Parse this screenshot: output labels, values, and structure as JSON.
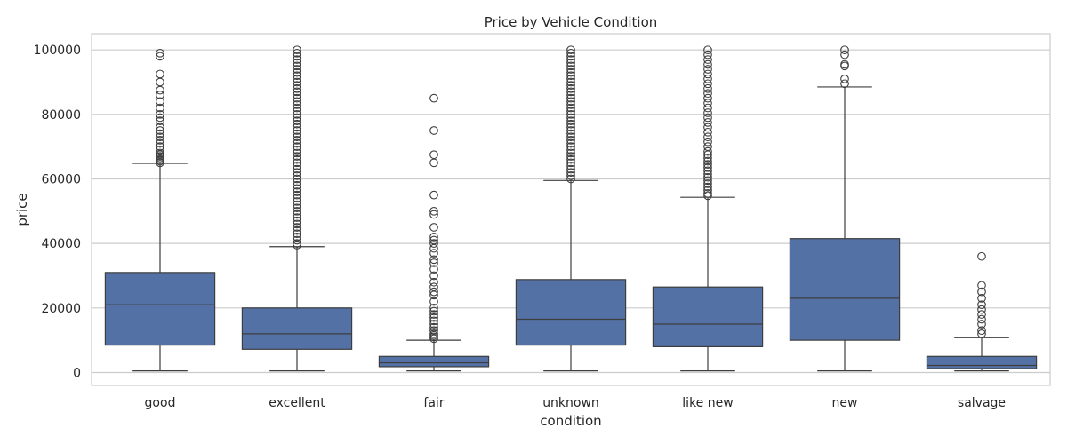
{
  "chart_data": {
    "type": "box",
    "title": "Price by Vehicle Condition",
    "xlabel": "condition",
    "ylabel": "price",
    "ylim": [
      -4000,
      105000
    ],
    "yticks": [
      0,
      20000,
      40000,
      60000,
      80000,
      100000
    ],
    "ytick_labels": [
      "0",
      "20000",
      "40000",
      "60000",
      "80000",
      "100000"
    ],
    "grid": true,
    "categories": [
      "good",
      "excellent",
      "fair",
      "unknown",
      "like new",
      "new",
      "salvage"
    ],
    "box_color": "#5471a6",
    "line_color": "#3d3d3d",
    "boxes": [
      {
        "category": "good",
        "q1": 8500,
        "median": 21000,
        "q3": 31000,
        "whisker_low": 500,
        "whisker_high": 64800,
        "outliers": [
          65000,
          65500,
          66000,
          66500,
          67000,
          67500,
          68000,
          69000,
          70000,
          71000,
          72000,
          73000,
          74000,
          75000,
          76000,
          78000,
          79000,
          80000,
          82000,
          84000,
          86000,
          87500,
          90000,
          92500,
          98000,
          99000
        ]
      },
      {
        "category": "excellent",
        "q1": 7200,
        "median": 12000,
        "q3": 20000,
        "whisker_low": 500,
        "whisker_high": 39000,
        "outliers": [
          39500,
          40000,
          41000,
          42000,
          43000,
          44000,
          45000,
          46000,
          47000,
          48000,
          49000,
          50000,
          51000,
          52000,
          53000,
          54000,
          55000,
          56000,
          57000,
          58000,
          59000,
          60000,
          61000,
          62000,
          63000,
          64000,
          65000,
          66000,
          67000,
          68000,
          69000,
          70000,
          71000,
          72000,
          73000,
          74000,
          75000,
          76000,
          77000,
          78000,
          79000,
          80000,
          81000,
          82000,
          83000,
          84000,
          85000,
          86000,
          87000,
          88000,
          89000,
          90000,
          91000,
          92000,
          93000,
          94000,
          95000,
          96000,
          97000,
          98000,
          99000,
          100000
        ]
      },
      {
        "category": "fair",
        "q1": 1800,
        "median": 3000,
        "q3": 5000,
        "whisker_low": 500,
        "whisker_high": 10000,
        "outliers": [
          10500,
          11000,
          11500,
          12000,
          13000,
          14000,
          15000,
          16000,
          17000,
          18000,
          19000,
          20000,
          22000,
          24000,
          25000,
          26500,
          28000,
          30000,
          32000,
          34000,
          35000,
          37000,
          38500,
          40000,
          41000,
          42000,
          45000,
          49000,
          50000,
          55000,
          65000,
          67500,
          75000,
          85000
        ]
      },
      {
        "category": "unknown",
        "q1": 8500,
        "median": 16500,
        "q3": 28800,
        "whisker_low": 500,
        "whisker_high": 59500,
        "outliers": [
          60000,
          61000,
          62000,
          63000,
          64000,
          65000,
          66000,
          67000,
          68000,
          69000,
          70000,
          71000,
          72000,
          73000,
          74000,
          75000,
          76000,
          77000,
          78000,
          79000,
          80000,
          81000,
          82000,
          83000,
          84000,
          85000,
          86000,
          87000,
          88000,
          89000,
          90000,
          91000,
          92000,
          93000,
          94000,
          95000,
          96000,
          97000,
          98000,
          99000,
          100000
        ]
      },
      {
        "category": "like new",
        "q1": 8000,
        "median": 15000,
        "q3": 26500,
        "whisker_low": 500,
        "whisker_high": 54300,
        "outliers": [
          54800,
          55500,
          56500,
          57500,
          58500,
          59500,
          60500,
          61500,
          62500,
          63500,
          64500,
          65500,
          66500,
          67500,
          68500,
          70000,
          71500,
          73000,
          74500,
          76000,
          77500,
          79000,
          80500,
          82000,
          83500,
          85000,
          86500,
          88000,
          89500,
          91000,
          92500,
          94000,
          95500,
          97000,
          98500,
          100000
        ]
      },
      {
        "category": "new",
        "q1": 10000,
        "median": 23000,
        "q3": 41500,
        "whisker_low": 500,
        "whisker_high": 88500,
        "outliers": [
          89500,
          91000,
          95000,
          95500,
          98500,
          100000
        ]
      },
      {
        "category": "salvage",
        "q1": 1200,
        "median": 2200,
        "q3": 5000,
        "whisker_low": 500,
        "whisker_high": 10800,
        "outliers": [
          12000,
          13000,
          15000,
          16500,
          18000,
          19500,
          21000,
          23000,
          25000,
          27000,
          36000
        ]
      }
    ]
  }
}
